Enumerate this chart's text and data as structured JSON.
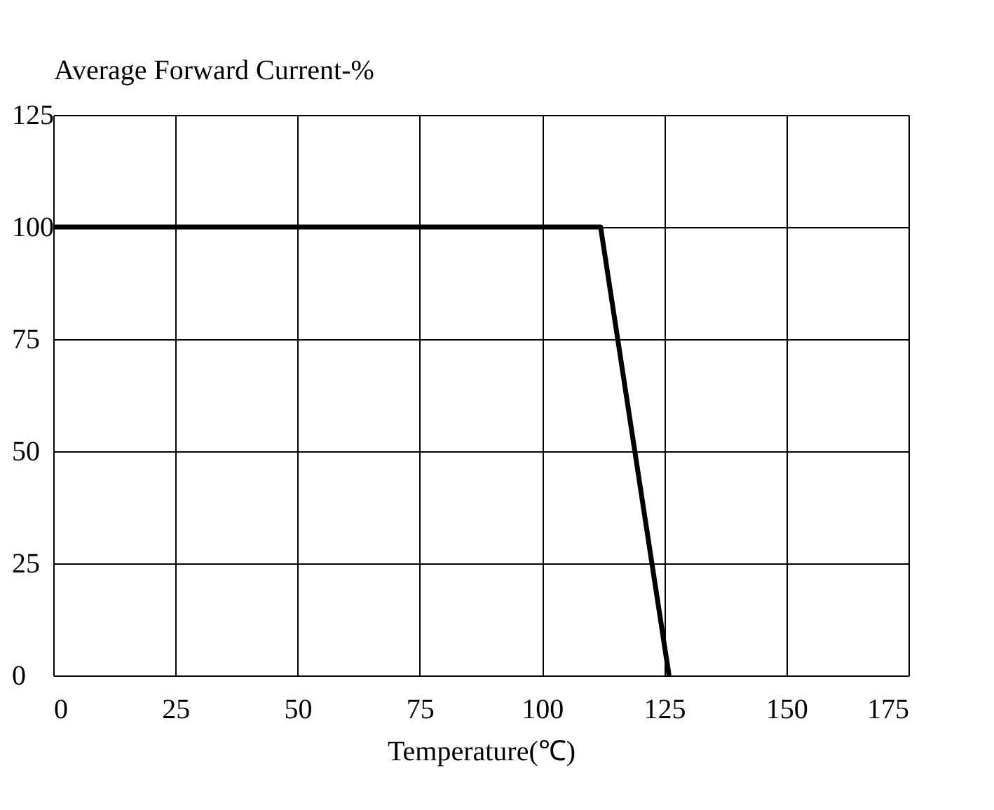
{
  "chart_data": {
    "type": "line",
    "xlabel": "Temperature(℃)",
    "ylabel": "Average Forward Current-%",
    "x": [
      0,
      112,
      126
    ],
    "series": [
      {
        "color": "#000000",
        "values": [
          100,
          100,
          0
        ]
      }
    ],
    "xlim": [
      0,
      175
    ],
    "xticks": [
      0,
      25,
      50,
      75,
      100,
      125,
      150,
      175
    ],
    "ylim": [
      0,
      125
    ],
    "yticks": [
      0,
      25,
      50,
      75,
      100,
      125
    ],
    "grid": true,
    "marker": "none",
    "line_style": "solid"
  }
}
